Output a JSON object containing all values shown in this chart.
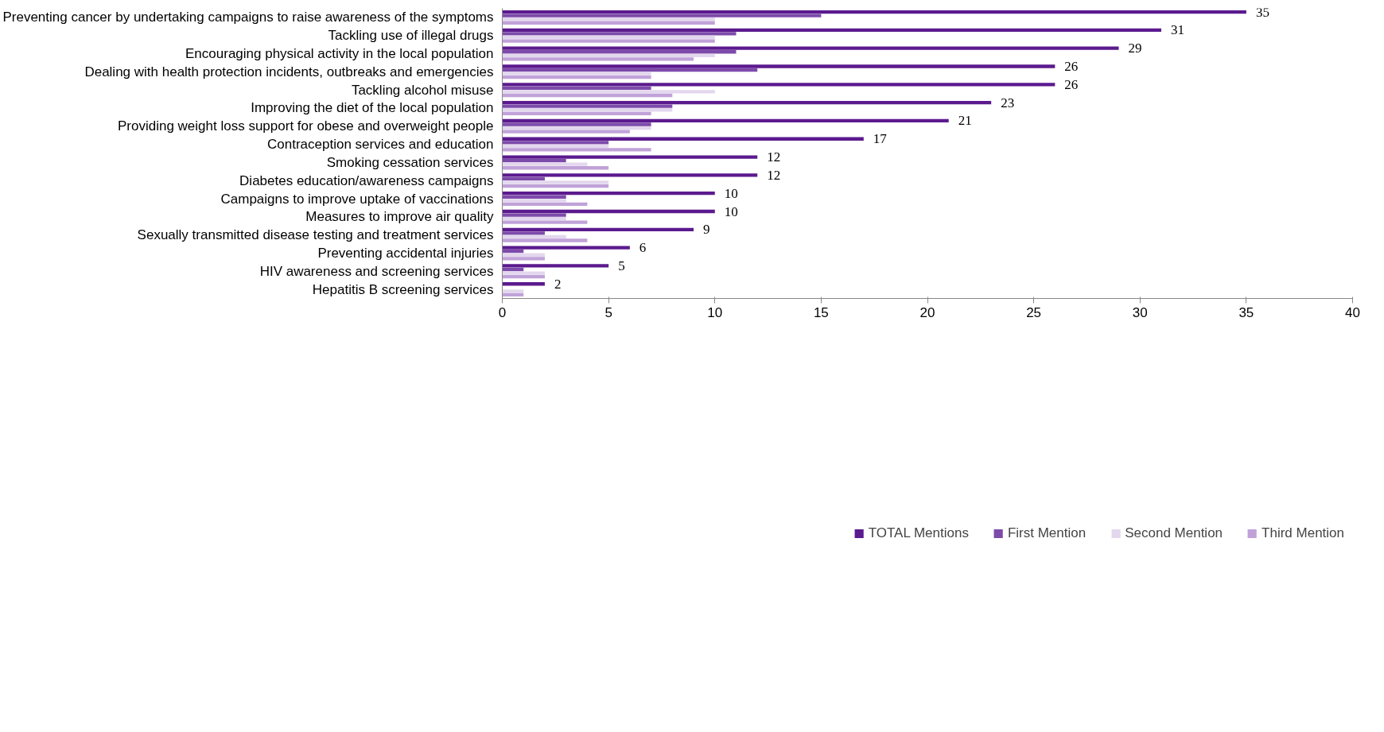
{
  "chart_data": {
    "type": "bar",
    "orientation": "horizontal",
    "categories": [
      "Preventing cancer by undertaking campaigns to raise awareness of the symptoms",
      "Tackling use of illegal drugs",
      "Encouraging physical activity in the local population",
      "Dealing with health protection incidents, outbreaks and emergencies",
      "Tackling alcohol misuse",
      "Improving the diet of the local population",
      "Providing weight loss support for obese and overweight people",
      "Contraception services and education",
      "Smoking cessation services",
      "Diabetes education/awareness campaigns",
      "Campaigns to improve uptake of vaccinations",
      "Measures to improve air quality",
      "Sexually transmitted disease testing and treatment services",
      "Preventing accidental injuries",
      "HIV awareness and screening services",
      "Hepatitis B screening services"
    ],
    "series": [
      {
        "name": "TOTAL Mentions",
        "color": "#5b1a8e",
        "values": [
          35,
          31,
          29,
          26,
          26,
          23,
          21,
          17,
          12,
          12,
          10,
          10,
          9,
          6,
          5,
          2
        ],
        "value_labels": [
          "35",
          "31",
          "29",
          "26",
          "26",
          "23",
          "21",
          "17",
          "12",
          "12",
          "10",
          "10",
          "9",
          "6",
          "5",
          "2"
        ]
      },
      {
        "name": "First Mention",
        "color": "#7d4aaa",
        "values": [
          15,
          11,
          11,
          12,
          7,
          8,
          7,
          5,
          3,
          2,
          3,
          3,
          2,
          1,
          1,
          0
        ]
      },
      {
        "name": "Second Mention",
        "color": "#e3d7ee",
        "values": [
          10,
          10,
          10,
          7,
          10,
          8,
          7,
          5,
          4,
          5,
          3,
          3,
          3,
          2,
          2,
          1
        ]
      },
      {
        "name": "Third Mention",
        "color": "#c0a2d8",
        "values": [
          10,
          10,
          9,
          7,
          8,
          7,
          6,
          7,
          5,
          5,
          4,
          4,
          4,
          2,
          2,
          1
        ]
      }
    ],
    "xlim": [
      0,
      40
    ],
    "xticks": [
      0,
      5,
      10,
      15,
      20,
      25,
      30,
      35,
      40
    ],
    "grid": false,
    "legend": "bottom"
  }
}
